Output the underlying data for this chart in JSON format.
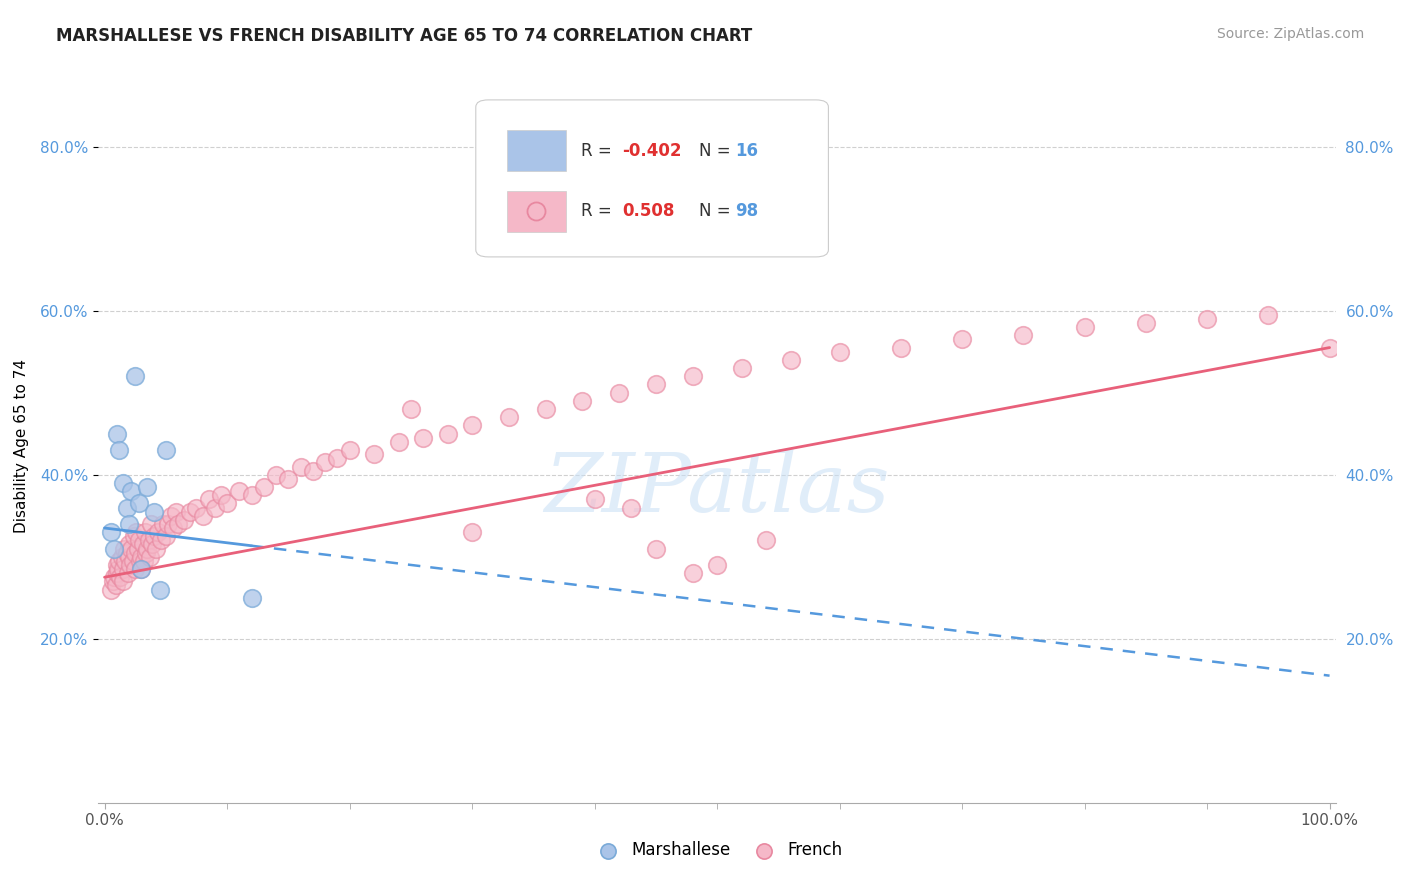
{
  "title": "MARSHALLESE VS FRENCH DISABILITY AGE 65 TO 74 CORRELATION CHART",
  "source": "Source: ZipAtlas.com",
  "ylabel": "Disability Age 65 to 74",
  "watermark": "ZIPatlas",
  "xlim": [
    -0.005,
    1.005
  ],
  "ylim": [
    0.0,
    0.87
  ],
  "ytick_positions": [
    0.2,
    0.4,
    0.6,
    0.8
  ],
  "ytick_labels": [
    "20.0%",
    "40.0%",
    "60.0%",
    "80.0%"
  ],
  "marshallese_color": "#aac4e8",
  "french_color": "#f5b8c8",
  "french_edge_color": "#e888a0",
  "line1_color": "#5599dd",
  "line2_color": "#e8607a",
  "grid_color": "#d0d0d0",
  "background_color": "#ffffff",
  "marshallese_x": [
    0.005,
    0.008,
    0.01,
    0.012,
    0.015,
    0.018,
    0.02,
    0.022,
    0.025,
    0.028,
    0.03,
    0.035,
    0.04,
    0.045,
    0.05,
    0.12
  ],
  "marshallese_y": [
    0.33,
    0.31,
    0.45,
    0.43,
    0.39,
    0.36,
    0.34,
    0.38,
    0.52,
    0.365,
    0.285,
    0.385,
    0.355,
    0.26,
    0.43,
    0.25
  ],
  "french_x": [
    0.005,
    0.007,
    0.008,
    0.009,
    0.01,
    0.01,
    0.011,
    0.012,
    0.013,
    0.014,
    0.015,
    0.015,
    0.016,
    0.017,
    0.018,
    0.019,
    0.02,
    0.02,
    0.021,
    0.022,
    0.023,
    0.024,
    0.025,
    0.025,
    0.026,
    0.027,
    0.028,
    0.029,
    0.03,
    0.03,
    0.031,
    0.032,
    0.033,
    0.034,
    0.035,
    0.036,
    0.037,
    0.038,
    0.039,
    0.04,
    0.042,
    0.044,
    0.046,
    0.048,
    0.05,
    0.052,
    0.054,
    0.056,
    0.058,
    0.06,
    0.065,
    0.07,
    0.075,
    0.08,
    0.085,
    0.09,
    0.095,
    0.1,
    0.11,
    0.12,
    0.13,
    0.14,
    0.15,
    0.16,
    0.17,
    0.18,
    0.19,
    0.2,
    0.22,
    0.24,
    0.26,
    0.28,
    0.3,
    0.33,
    0.36,
    0.39,
    0.42,
    0.45,
    0.48,
    0.52,
    0.56,
    0.6,
    0.65,
    0.7,
    0.75,
    0.8,
    0.85,
    0.9,
    0.95,
    1.0,
    0.25,
    0.3,
    0.4,
    0.45,
    0.5,
    0.54,
    0.43,
    0.48
  ],
  "french_y": [
    0.26,
    0.27,
    0.275,
    0.265,
    0.29,
    0.28,
    0.285,
    0.295,
    0.275,
    0.3,
    0.285,
    0.27,
    0.31,
    0.295,
    0.305,
    0.28,
    0.3,
    0.315,
    0.29,
    0.31,
    0.295,
    0.325,
    0.305,
    0.285,
    0.33,
    0.31,
    0.32,
    0.295,
    0.3,
    0.285,
    0.315,
    0.295,
    0.33,
    0.305,
    0.31,
    0.32,
    0.3,
    0.34,
    0.315,
    0.325,
    0.31,
    0.33,
    0.32,
    0.34,
    0.325,
    0.34,
    0.35,
    0.335,
    0.355,
    0.34,
    0.345,
    0.355,
    0.36,
    0.35,
    0.37,
    0.36,
    0.375,
    0.365,
    0.38,
    0.375,
    0.385,
    0.4,
    0.395,
    0.41,
    0.405,
    0.415,
    0.42,
    0.43,
    0.425,
    0.44,
    0.445,
    0.45,
    0.46,
    0.47,
    0.48,
    0.49,
    0.5,
    0.51,
    0.52,
    0.53,
    0.54,
    0.55,
    0.555,
    0.565,
    0.57,
    0.58,
    0.585,
    0.59,
    0.595,
    0.555,
    0.48,
    0.33,
    0.37,
    0.31,
    0.29,
    0.32,
    0.36,
    0.28
  ],
  "line1_x_start": 0.0,
  "line1_x_end": 1.0,
  "line1_y_start": 0.335,
  "line1_y_end": 0.155,
  "line1_solid_end": 0.12,
  "line2_x_start": 0.0,
  "line2_x_end": 1.0,
  "line2_y_start": 0.275,
  "line2_y_end": 0.555
}
